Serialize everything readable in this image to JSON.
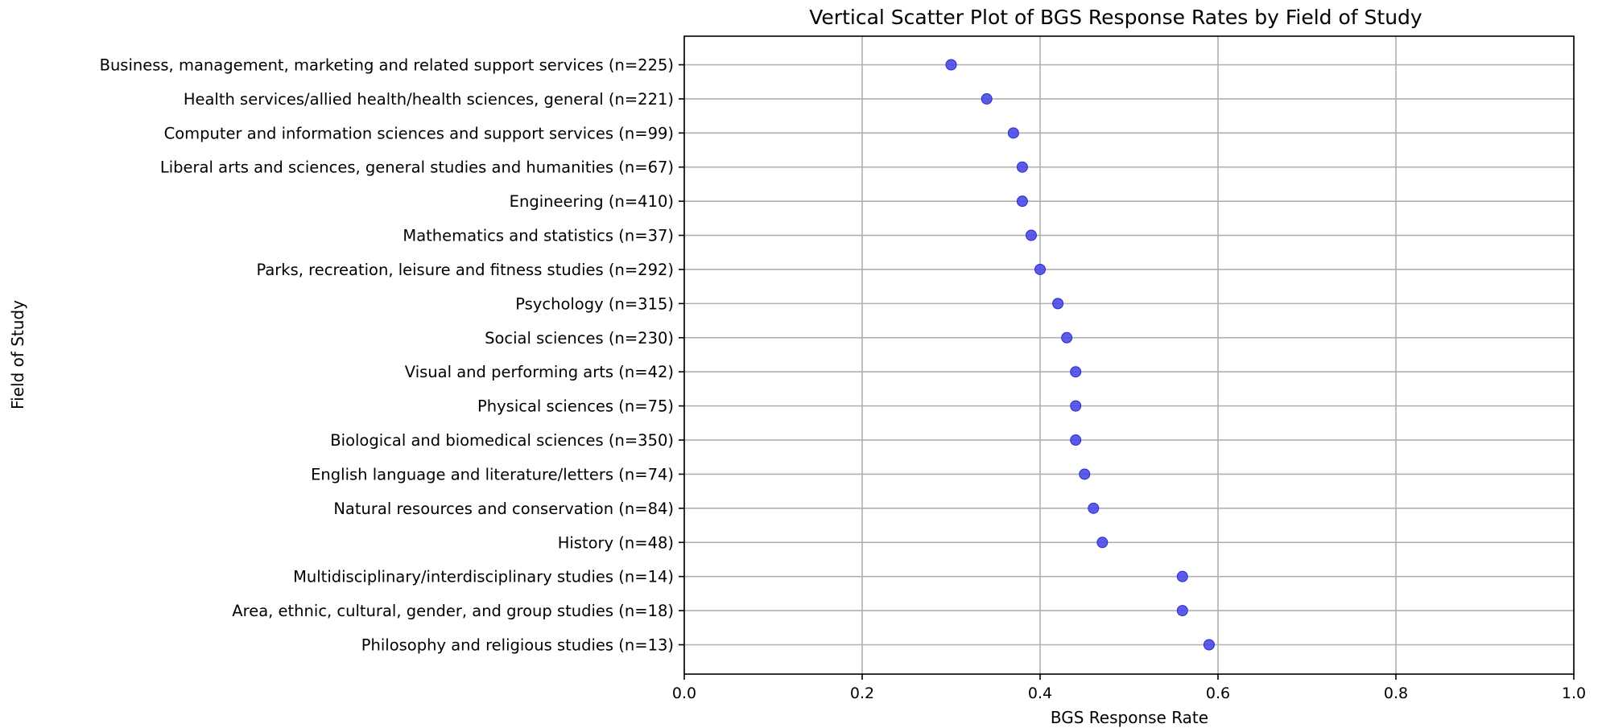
{
  "chart_data": {
    "type": "scatter",
    "title": "Vertical Scatter Plot of BGS Response Rates by Field of Study",
    "xlabel": "BGS Response Rate",
    "ylabel": "Field of Study",
    "xlim": [
      0.0,
      1.0
    ],
    "xticks": [
      "0.0",
      "0.2",
      "0.4",
      "0.6",
      "0.8",
      "1.0"
    ],
    "xtick_values": [
      0.0,
      0.2,
      0.4,
      0.6,
      0.8,
      1.0
    ],
    "grid": true,
    "point_color": "#4a4ae6",
    "categories": [
      "Business, management, marketing and related support services (n=225)",
      "Health services/allied health/health sciences, general (n=221)",
      "Computer and information sciences and support services (n=99)",
      "Liberal arts and sciences, general studies and humanities (n=67)",
      "Engineering (n=410)",
      "Mathematics and statistics (n=37)",
      "Parks, recreation, leisure and fitness studies (n=292)",
      "Psychology (n=315)",
      "Social sciences (n=230)",
      "Visual and performing arts (n=42)",
      "Physical sciences (n=75)",
      "Biological and biomedical sciences (n=350)",
      "English language and literature/letters (n=74)",
      "Natural resources and conservation (n=84)",
      "History (n=48)",
      "Multidisciplinary/interdisciplinary studies (n=14)",
      "Area, ethnic, cultural, gender, and group studies (n=18)",
      "Philosophy and religious studies (n=13)"
    ],
    "values": [
      0.3,
      0.34,
      0.37,
      0.38,
      0.38,
      0.39,
      0.4,
      0.42,
      0.43,
      0.44,
      0.44,
      0.44,
      0.45,
      0.46,
      0.47,
      0.56,
      0.56,
      0.59
    ]
  }
}
